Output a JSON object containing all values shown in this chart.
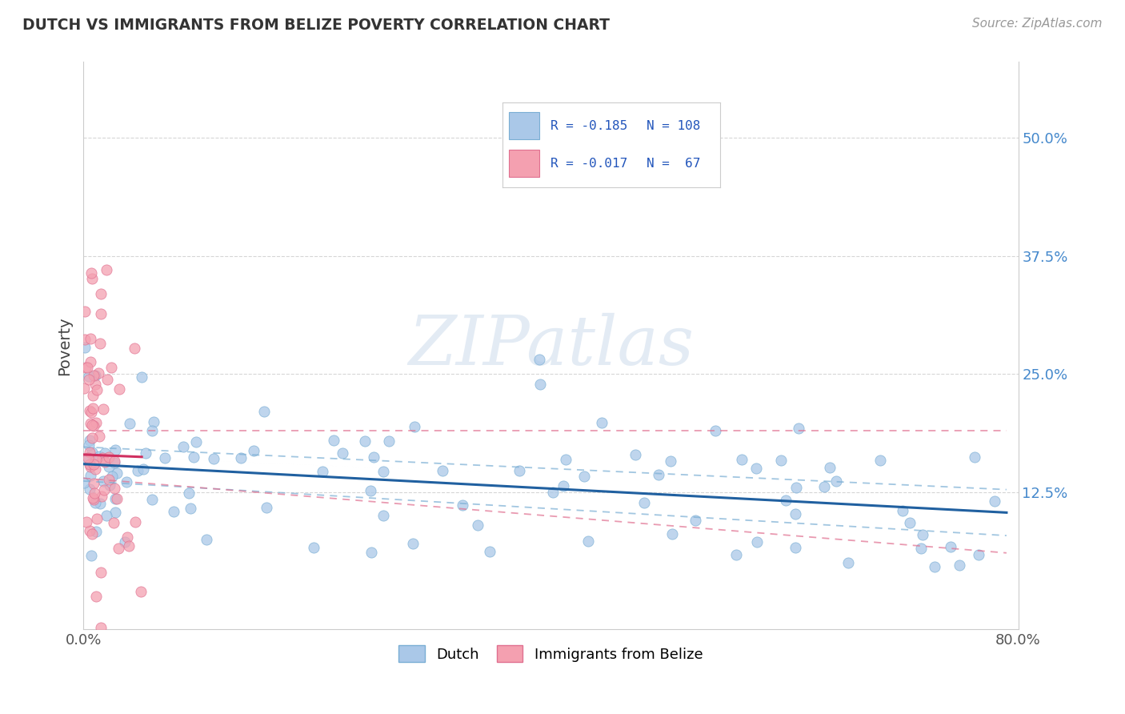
{
  "title": "DUTCH VS IMMIGRANTS FROM BELIZE POVERTY CORRELATION CHART",
  "source": "Source: ZipAtlas.com",
  "ylabel": "Poverty",
  "xlim": [
    0.0,
    0.8
  ],
  "ylim": [
    -0.02,
    0.58
  ],
  "xtick_vals": [
    0.0,
    0.2,
    0.4,
    0.6,
    0.8
  ],
  "xtick_labels_visible": {
    "0.0": "0.0%",
    "0.80": "80.0%"
  },
  "ytick_labels": [
    "12.5%",
    "25.0%",
    "37.5%",
    "50.0%"
  ],
  "ytick_vals": [
    0.125,
    0.25,
    0.375,
    0.5
  ],
  "legend_top": {
    "blue_r": "R = -0.185",
    "blue_n": "N = 108",
    "pink_r": "R = -0.017",
    "pink_n": "N =  67"
  },
  "blue_scatter_color": "#aac8e8",
  "blue_edge_color": "#7aaed4",
  "pink_scatter_color": "#f4a0b0",
  "pink_edge_color": "#e07090",
  "trend_blue_color": "#2060a0",
  "trend_blue_ci_color": "#7aaed4",
  "trend_pink_color": "#d03060",
  "trend_pink_ci_color": "#e07090",
  "watermark": "ZIPatlas",
  "background_color": "#ffffff",
  "grid_color": "#cccccc",
  "blue_N": 108,
  "pink_N": 67,
  "seed": 42
}
